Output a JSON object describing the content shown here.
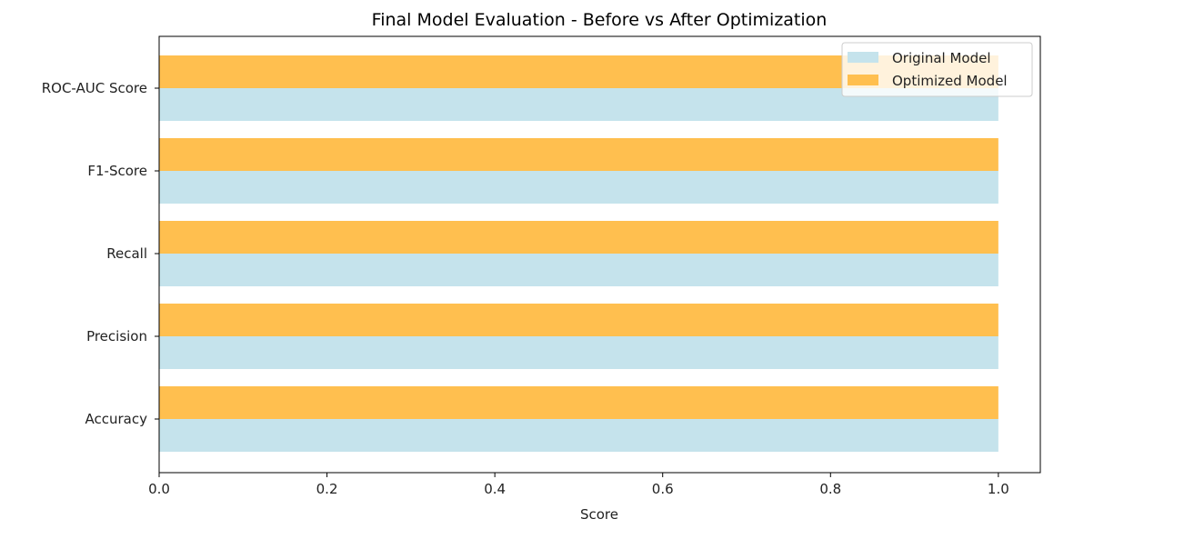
{
  "chart_data": {
    "type": "bar",
    "orientation": "horizontal",
    "title": "Final Model Evaluation - Before vs After Optimization",
    "xlabel": "Score",
    "ylabel": "",
    "xlim": [
      0.0,
      1.05
    ],
    "xticks": [
      "0.0",
      "0.2",
      "0.4",
      "0.6",
      "0.8",
      "1.0"
    ],
    "xtick_values": [
      0.0,
      0.2,
      0.4,
      0.6,
      0.8,
      1.0
    ],
    "categories": [
      "Accuracy",
      "Precision",
      "Recall",
      "F1-Score",
      "ROC-AUC Score"
    ],
    "series": [
      {
        "name": "Original Model",
        "color": "#c5e3ec",
        "values": [
          1.0,
          1.0,
          1.0,
          1.0,
          1.0
        ]
      },
      {
        "name": "Optimized Model",
        "color": "#ffbf4f",
        "values": [
          1.0,
          1.0,
          1.0,
          1.0,
          1.0
        ]
      }
    ],
    "legend_position": "top-right",
    "grid": false
  }
}
